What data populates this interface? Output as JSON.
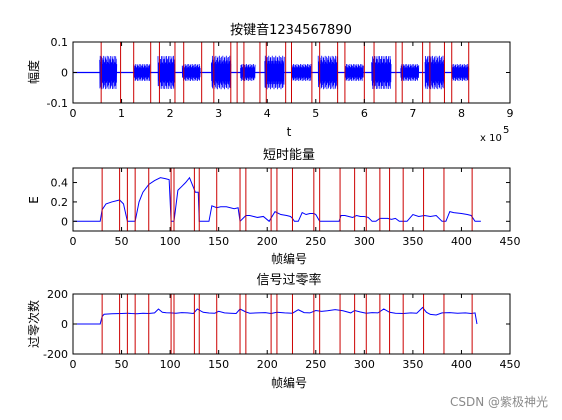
{
  "watermark": "CSDN @紫极神光",
  "colors": {
    "signal": "#0000ff",
    "marker": "#cc0000",
    "axes": "#000000"
  },
  "chart_data": [
    {
      "type": "line",
      "title": "按键音1234567890",
      "xlabel": "t",
      "ylabel": "幅度",
      "xlim": [
        0,
        900000
      ],
      "ylim": [
        -0.1,
        0.1
      ],
      "x_ticks": [
        0,
        1,
        2,
        3,
        4,
        5,
        6,
        7,
        8,
        9
      ],
      "y_ticks": [
        "-0.1",
        "0",
        "0.1"
      ],
      "x_exponent_label": "x 10",
      "x_exponent_power": "5",
      "x_tick_multiplier": 100000,
      "grid": false,
      "signal_end": 810000,
      "bursts": [
        [
          55000,
          90000
        ],
        [
          125000,
          158000
        ],
        [
          175000,
          210000
        ],
        [
          225000,
          262000
        ],
        [
          285000,
          325000
        ],
        [
          345000,
          375000
        ],
        [
          395000,
          435000
        ],
        [
          450000,
          490000
        ],
        [
          505000,
          545000
        ],
        [
          560000,
          598000
        ],
        [
          615000,
          655000
        ],
        [
          675000,
          712000
        ],
        [
          725000,
          765000
        ],
        [
          780000,
          815000
        ]
      ],
      "marker_lines": [
        58000,
        98000,
        125000,
        160000,
        178000,
        210000,
        228000,
        265000,
        290000,
        325000,
        338000,
        352000,
        385000,
        398000,
        438000,
        450000,
        492000,
        508000,
        545000,
        560000,
        600000,
        620000,
        665000,
        678000,
        720000,
        735000,
        765000,
        780000,
        815000
      ]
    },
    {
      "type": "line",
      "title": "短时能量",
      "xlabel": "帧编号",
      "ylabel": "E",
      "xlim": [
        0,
        450
      ],
      "ylim": [
        -0.1,
        0.55
      ],
      "x_ticks": [
        0,
        50,
        100,
        150,
        200,
        250,
        300,
        350,
        400,
        450
      ],
      "y_ticks": [
        0,
        0.2,
        0.4
      ],
      "grid": false,
      "x": [
        1,
        28,
        30,
        34,
        40,
        48,
        52,
        56,
        58,
        60,
        64,
        68,
        72,
        78,
        84,
        90,
        95,
        99,
        101,
        103,
        104,
        108,
        112,
        116,
        120,
        122,
        126,
        129,
        130,
        136,
        140,
        143,
        148,
        152,
        158,
        166,
        170,
        172,
        178,
        182,
        186,
        190,
        196,
        202,
        208,
        214,
        220,
        224,
        226,
        228,
        232,
        236,
        240,
        244,
        248,
        250,
        254,
        258,
        262,
        266,
        270,
        274,
        276,
        280,
        284,
        288,
        292,
        296,
        300,
        304,
        308,
        312,
        316,
        320,
        324,
        328,
        332,
        336,
        340,
        344,
        350,
        356,
        362,
        368,
        374,
        380,
        384,
        388,
        392,
        400,
        406,
        410,
        414,
        416,
        420
      ],
      "y": [
        0,
        0.0,
        0.12,
        0.18,
        0.2,
        0.22,
        0.18,
        0.0,
        0.0,
        0.0,
        0.0,
        0.2,
        0.3,
        0.38,
        0.42,
        0.45,
        0.44,
        0.43,
        0.0,
        0.0,
        0.0,
        0.32,
        0.36,
        0.4,
        0.45,
        0.4,
        0.3,
        0.3,
        0.0,
        0.0,
        0.0,
        0.16,
        0.14,
        0.15,
        0.15,
        0.13,
        0.14,
        0.0,
        0.06,
        0.06,
        0.05,
        0.04,
        0.05,
        0.0,
        0.1,
        0.07,
        0.06,
        0.05,
        0.03,
        0.0,
        0.0,
        0.09,
        0.07,
        0.08,
        0.08,
        0.07,
        0.0,
        0.0,
        0.0,
        0.0,
        0.0,
        0.0,
        0.06,
        0.06,
        0.05,
        0.04,
        0.06,
        0.05,
        0.05,
        0.04,
        0.0,
        0.0,
        0.03,
        0.03,
        0.03,
        0.02,
        0.03,
        0.0,
        0.0,
        0.0,
        0.07,
        0.05,
        0.06,
        0.05,
        0.06,
        0.0,
        0.0,
        0.1,
        0.09,
        0.08,
        0.07,
        0.06,
        0.0,
        0.0,
        0.0
      ],
      "marker_lines": [
        30,
        48,
        56,
        64,
        78,
        101,
        104,
        125,
        130,
        148,
        172,
        178,
        204,
        210,
        226,
        248,
        254,
        275,
        290,
        302,
        316,
        326,
        340,
        361,
        382,
        411
      ]
    },
    {
      "type": "line",
      "title": "信号过零率",
      "xlabel": "帧编号",
      "ylabel": "过零次数",
      "xlim": [
        0,
        450
      ],
      "ylim": [
        -200,
        200
      ],
      "x_ticks": [
        0,
        50,
        100,
        150,
        200,
        250,
        300,
        350,
        400,
        450
      ],
      "y_ticks": [
        -200,
        0,
        200
      ],
      "grid": false,
      "x": [
        1,
        28,
        30,
        32,
        40,
        50,
        56,
        60,
        66,
        72,
        78,
        84,
        88,
        92,
        96,
        100,
        106,
        112,
        118,
        124,
        128,
        134,
        140,
        146,
        150,
        156,
        162,
        168,
        172,
        178,
        182,
        190,
        198,
        204,
        210,
        218,
        226,
        232,
        238,
        244,
        250,
        256,
        262,
        270,
        278,
        286,
        290,
        296,
        302,
        308,
        314,
        320,
        326,
        332,
        340,
        348,
        354,
        360,
        364,
        368,
        374,
        380,
        388,
        396,
        404,
        410,
        414,
        416
      ],
      "y": [
        0,
        0,
        50,
        65,
        68,
        70,
        72,
        70,
        68,
        72,
        70,
        74,
        100,
        78,
        75,
        74,
        72,
        76,
        74,
        70,
        100,
        78,
        73,
        72,
        85,
        74,
        72,
        70,
        100,
        80,
        72,
        74,
        76,
        70,
        78,
        74,
        72,
        95,
        76,
        74,
        90,
        84,
        88,
        96,
        88,
        74,
        90,
        80,
        72,
        76,
        74,
        100,
        78,
        72,
        70,
        74,
        72,
        110,
        78,
        64,
        60,
        74,
        76,
        72,
        74,
        70,
        74,
        0
      ],
      "marker_lines": [
        30,
        48,
        56,
        64,
        78,
        101,
        104,
        125,
        130,
        148,
        172,
        178,
        204,
        210,
        226,
        248,
        254,
        275,
        290,
        302,
        316,
        326,
        340,
        361,
        382,
        411
      ]
    }
  ]
}
